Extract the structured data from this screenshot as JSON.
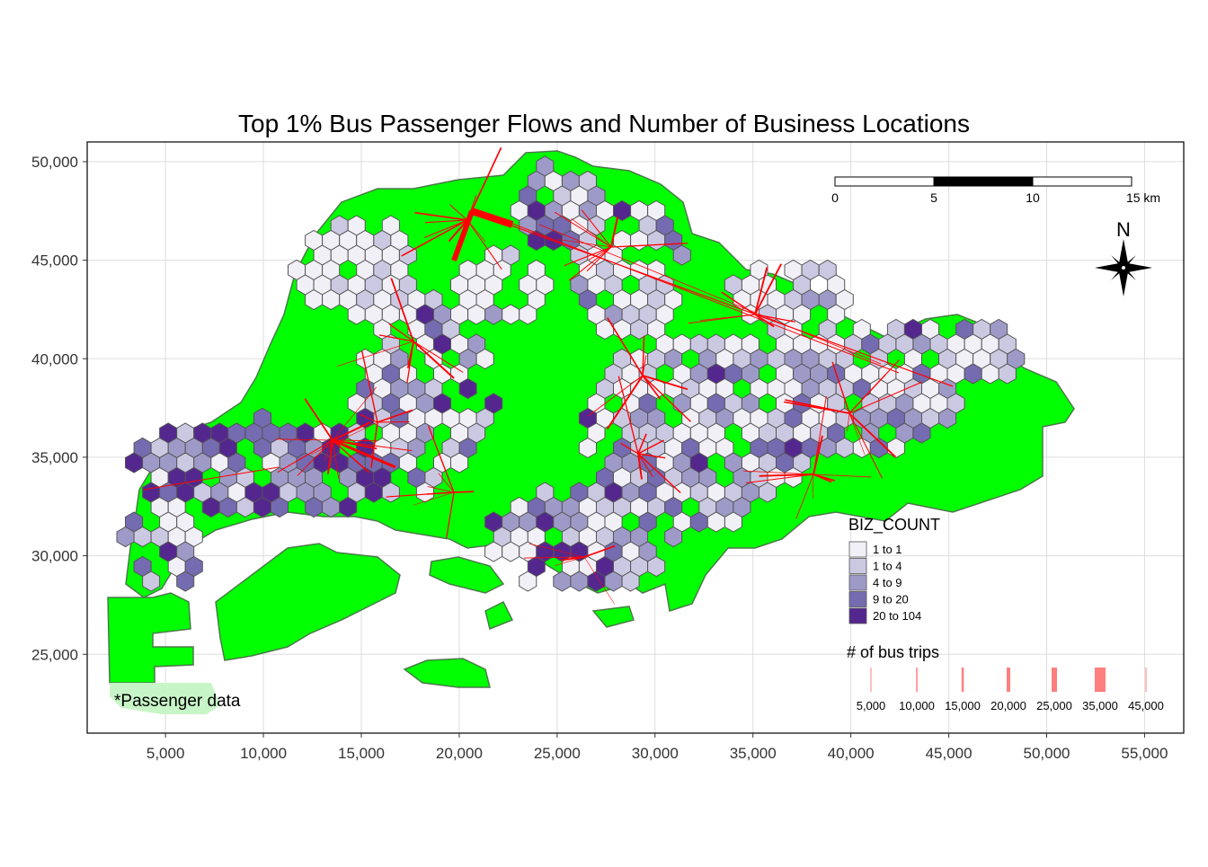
{
  "title": "Top 1% Bus Passenger Flows and Number of Business Locations",
  "axes": {
    "x_ticks": [
      "5,000",
      "10,000",
      "15,000",
      "20,000",
      "25,000",
      "30,000",
      "35,000",
      "40,000",
      "45,000",
      "50,000",
      "55,000"
    ],
    "x_values": [
      5000,
      10000,
      15000,
      20000,
      25000,
      30000,
      35000,
      40000,
      45000,
      50000,
      55000
    ],
    "y_ticks": [
      "25,000",
      "30,000",
      "35,000",
      "40,000",
      "45,000",
      "50,000"
    ],
    "y_values": [
      25000,
      30000,
      35000,
      40000,
      45000,
      50000
    ],
    "x_range": [
      1000,
      57000
    ],
    "y_range": [
      21000,
      51000
    ],
    "grid": true
  },
  "scale_bar": {
    "labels": [
      "0",
      "5",
      "10",
      "15 km"
    ],
    "segments_km": [
      0,
      5,
      10,
      15
    ]
  },
  "north_arrow": {
    "label": "N"
  },
  "legend_biz": {
    "title": "BIZ_COUNT",
    "items": [
      {
        "label": "1 to 1",
        "color": "#f2f0f7"
      },
      {
        "label": "1 to 4",
        "color": "#cbc9e2"
      },
      {
        "label": "4 to 9",
        "color": "#9e9ac8"
      },
      {
        "label": "9 to 20",
        "color": "#756bb1"
      },
      {
        "label": "20 to 104",
        "color": "#54278f"
      }
    ]
  },
  "legend_trips": {
    "title": "# of bus trips",
    "items": [
      {
        "label": "5,000",
        "weight": 1
      },
      {
        "label": "10,000",
        "weight": 1.5
      },
      {
        "label": "15,000",
        "weight": 2.5
      },
      {
        "label": "20,000",
        "weight": 4
      },
      {
        "label": "25,000",
        "weight": 6
      },
      {
        "label": "35,000",
        "weight": 12
      },
      {
        "label": "45,000",
        "weight": 1
      }
    ],
    "color": "#ff0000"
  },
  "annotation": "*Passenger data",
  "colors": {
    "land": "#00ff00",
    "boundary": "#4a7a4a",
    "flow": "#ff0000",
    "hex_border": "#555555"
  }
}
